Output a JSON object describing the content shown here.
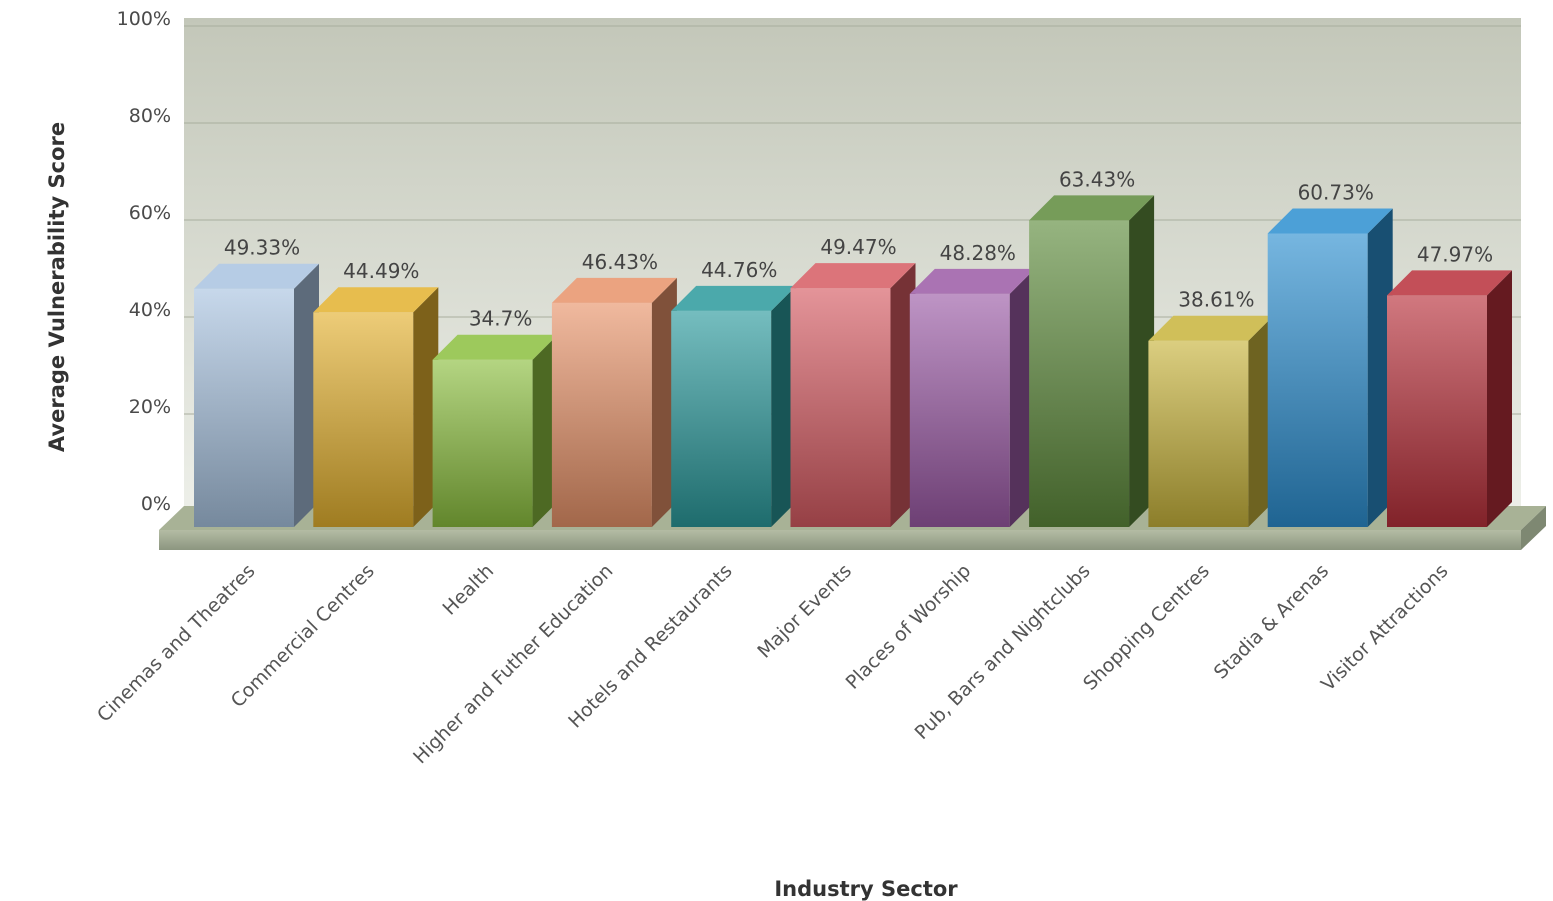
{
  "chart_data": {
    "type": "bar",
    "title": "",
    "xlabel": "Industry Sector",
    "ylabel": "Average Vulnerability Score",
    "ylim": [
      0,
      100
    ],
    "yticks": [
      "0%",
      "20%",
      "40%",
      "60%",
      "80%",
      "100%"
    ],
    "grid": true,
    "legend": "none",
    "categories": [
      "Cinemas and Theatres",
      "Commercial Centres",
      "Health",
      "Higher and Futher Education",
      "Hotels and Restaurants",
      "Major Events",
      "Places of Worship",
      "Pub, Bars and Nightclubs",
      "Shopping Centres",
      "Stadia & Arenas",
      "Visitor Attractions"
    ],
    "values": [
      49.33,
      44.49,
      34.7,
      46.43,
      44.76,
      49.47,
      48.28,
      63.43,
      38.61,
      60.73,
      47.97
    ],
    "value_labels": [
      "49.33%",
      "44.49%",
      "34.7%",
      "46.43%",
      "44.76%",
      "49.47%",
      "48.28%",
      "63.43%",
      "38.61%",
      "60.73%",
      "47.97%"
    ],
    "colors": [
      "#a9c3e0",
      "#e3b12f",
      "#8cbf3f",
      "#e8936a",
      "#2b9a9c",
      "#d65b62",
      "#9b5aa6",
      "#5e8b3c",
      "#c8b43c",
      "#2c8fd0",
      "#b8303a"
    ]
  }
}
